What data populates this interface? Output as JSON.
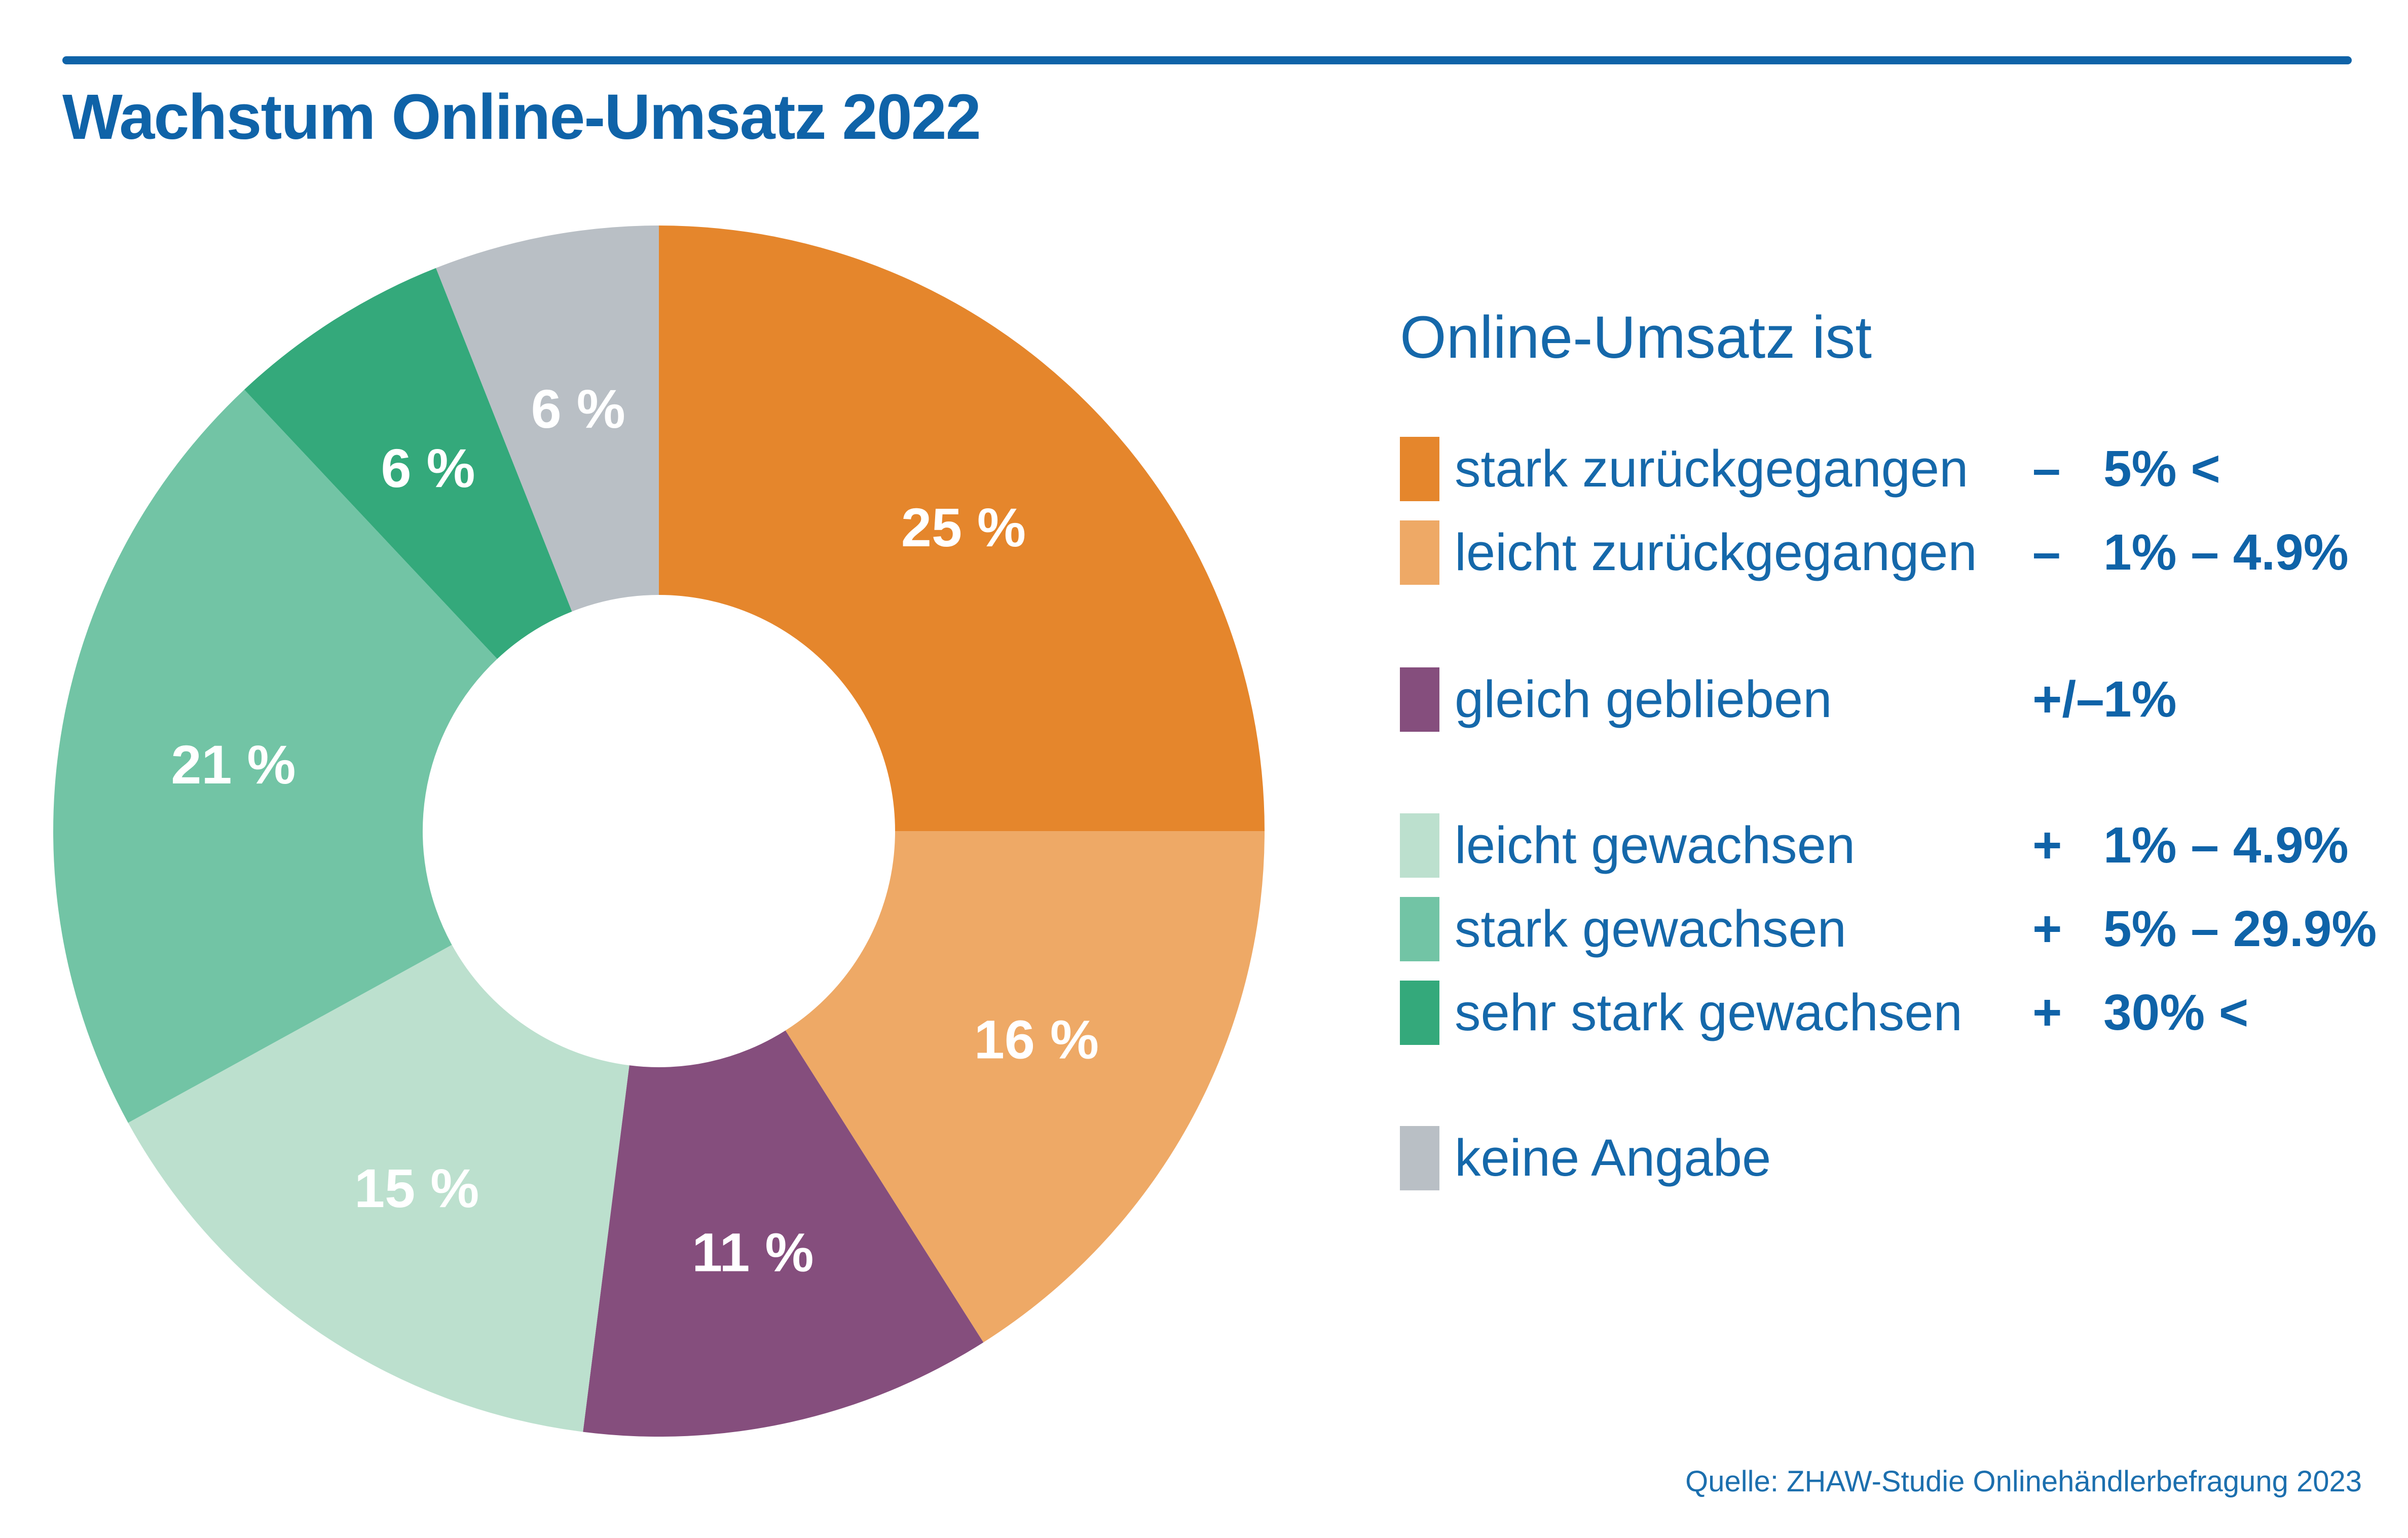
{
  "page": {
    "background": "#FFFFFF"
  },
  "header": {
    "rule_color": "#0F63A8",
    "title_color": "#0F63A8"
  },
  "colors": {
    "text_blue": "#1568AA",
    "value_blue": "#0F63A8",
    "source_blue": "#1C6FAE",
    "slice_label_white": "#FFFFFF"
  },
  "chart_data": {
    "type": "pie",
    "subtype": "donut",
    "title": "Wachstum Online-Umsatz 2022",
    "unit": "%",
    "categories": [
      "stark zurückgegangen",
      "leicht zurückgegangen",
      "gleich geblieben",
      "leicht gewachsen",
      "stark gewachsen",
      "sehr stark gewachsen",
      "keine Angabe"
    ],
    "values": [
      25,
      16,
      11,
      15,
      21,
      6,
      6
    ],
    "display_labels": [
      "25 %",
      "16 %",
      "11 %",
      "15 %",
      "21 %",
      "6 %",
      "6 %"
    ],
    "colors": [
      "#E5862C",
      "#EEA966",
      "#854E7D",
      "#BCE0CE",
      "#72C4A5",
      "#34A97B",
      "#B9BFC5"
    ],
    "start_angle_deg": 0,
    "direction": "clockwise",
    "donut_hole_ratio": 0.39,
    "legend_position": "right"
  },
  "legend": {
    "heading": "Online-Umsatz ist",
    "items": [
      {
        "label": "stark zurückgegangen",
        "sign": "–",
        "range": "5% <",
        "color": "#E5862C"
      },
      {
        "label": "leicht zurückgegangen",
        "sign": "–",
        "range": "1% – 4.9%",
        "color": "#EEA966"
      },
      {
        "label": "gleich geblieben",
        "sign": "+/–",
        "range": "1%",
        "color": "#854E7D"
      },
      {
        "label": "leicht gewachsen",
        "sign": "+",
        "range": "1% – 4.9%",
        "color": "#BCE0CE"
      },
      {
        "label": "stark gewachsen",
        "sign": "+",
        "range": "5% – 29.9%",
        "color": "#72C4A5"
      },
      {
        "label": "sehr stark gewachsen",
        "sign": "+",
        "range": "30% <",
        "color": "#34A97B"
      },
      {
        "label": "keine Angabe",
        "sign": "",
        "range": "",
        "color": "#B9BFC5"
      }
    ]
  },
  "source": "Quelle: ZHAW-Studie Onlinehändlerbefragung 2023"
}
